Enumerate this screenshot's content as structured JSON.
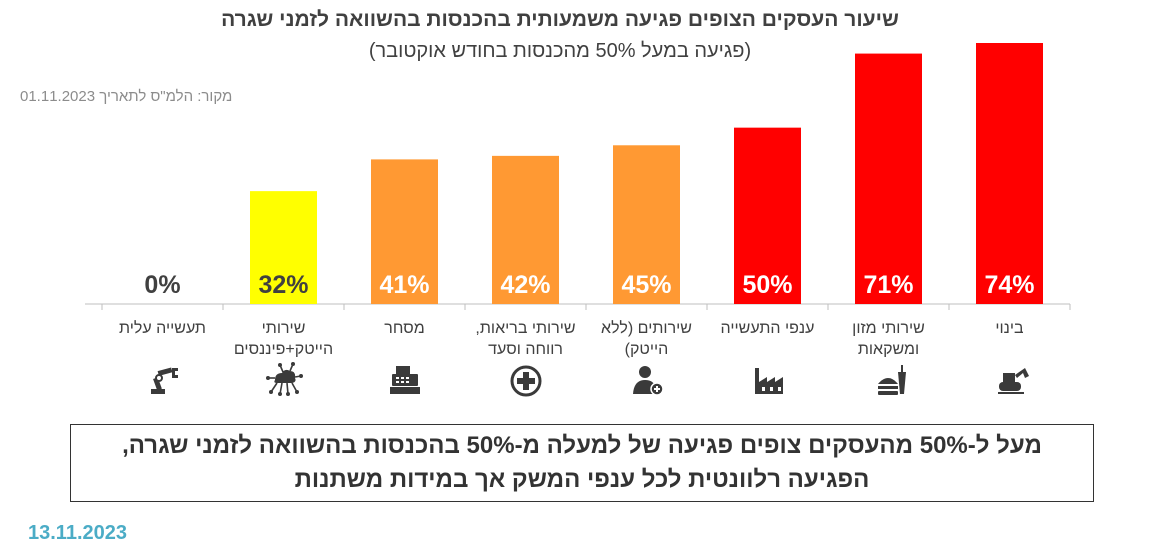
{
  "title": "שיעור העסקים הצופים פגיעה משמעותית בהכנסות בהשוואה לזמני שגרה",
  "subtitle": "(פגיעה במעל 50% מהכנסות בחודש אוקטובר)",
  "source": "מקור: הלמ\"ס לתאריך 01.11.2023",
  "summary": "מעל ל-50% מהעסקים צופים פגיעה של למעלה מ-50% בהכנסות בהשוואה לזמני שגרה, הפגיעה רלוונטית לכל ענפי המשק אך במידות משתנות",
  "date": "13.11.2023",
  "colors": {
    "high": "#ff0000",
    "mid": "#ff9933",
    "low": "#ffff00",
    "zero_label": "#404040",
    "bar_label": "#ffffff",
    "axis": "#bfbfbf"
  },
  "chart_data": {
    "type": "bar",
    "title": "שיעור העסקים הצופים פגיעה משמעותית בהכנסות בהשוואה לזמני שגרה",
    "subtitle": "(פגיעה במעל 50% מהכנסות בחודש אוקטובר)",
    "categories": [
      "בינוי",
      "שירותי מזון ומשקאות",
      "ענפי התעשייה",
      "שירותים (ללא הייטק)",
      "שירותי בריאות, רווחה וסעד",
      "מסחר",
      "שירותי הייטק+פיננסים",
      "תעשייה עלית"
    ],
    "values": [
      74,
      71,
      50,
      45,
      42,
      41,
      32,
      0
    ],
    "value_labels": [
      "74%",
      "71%",
      "50%",
      "45%",
      "42%",
      "41%",
      "32%",
      "0%"
    ],
    "bar_colors": [
      "#ff0000",
      "#ff0000",
      "#ff0000",
      "#ff9933",
      "#ff9933",
      "#ff9933",
      "#ffff00",
      "#ffff00"
    ],
    "icons": [
      "excavator-icon",
      "fast-food-icon",
      "factory-icon",
      "person-plus-icon",
      "medical-cross-icon",
      "cash-register-icon",
      "network-cloud-icon",
      "robot-arm-icon"
    ],
    "ylim": [
      0,
      74
    ],
    "grid": false,
    "legend": "none"
  }
}
